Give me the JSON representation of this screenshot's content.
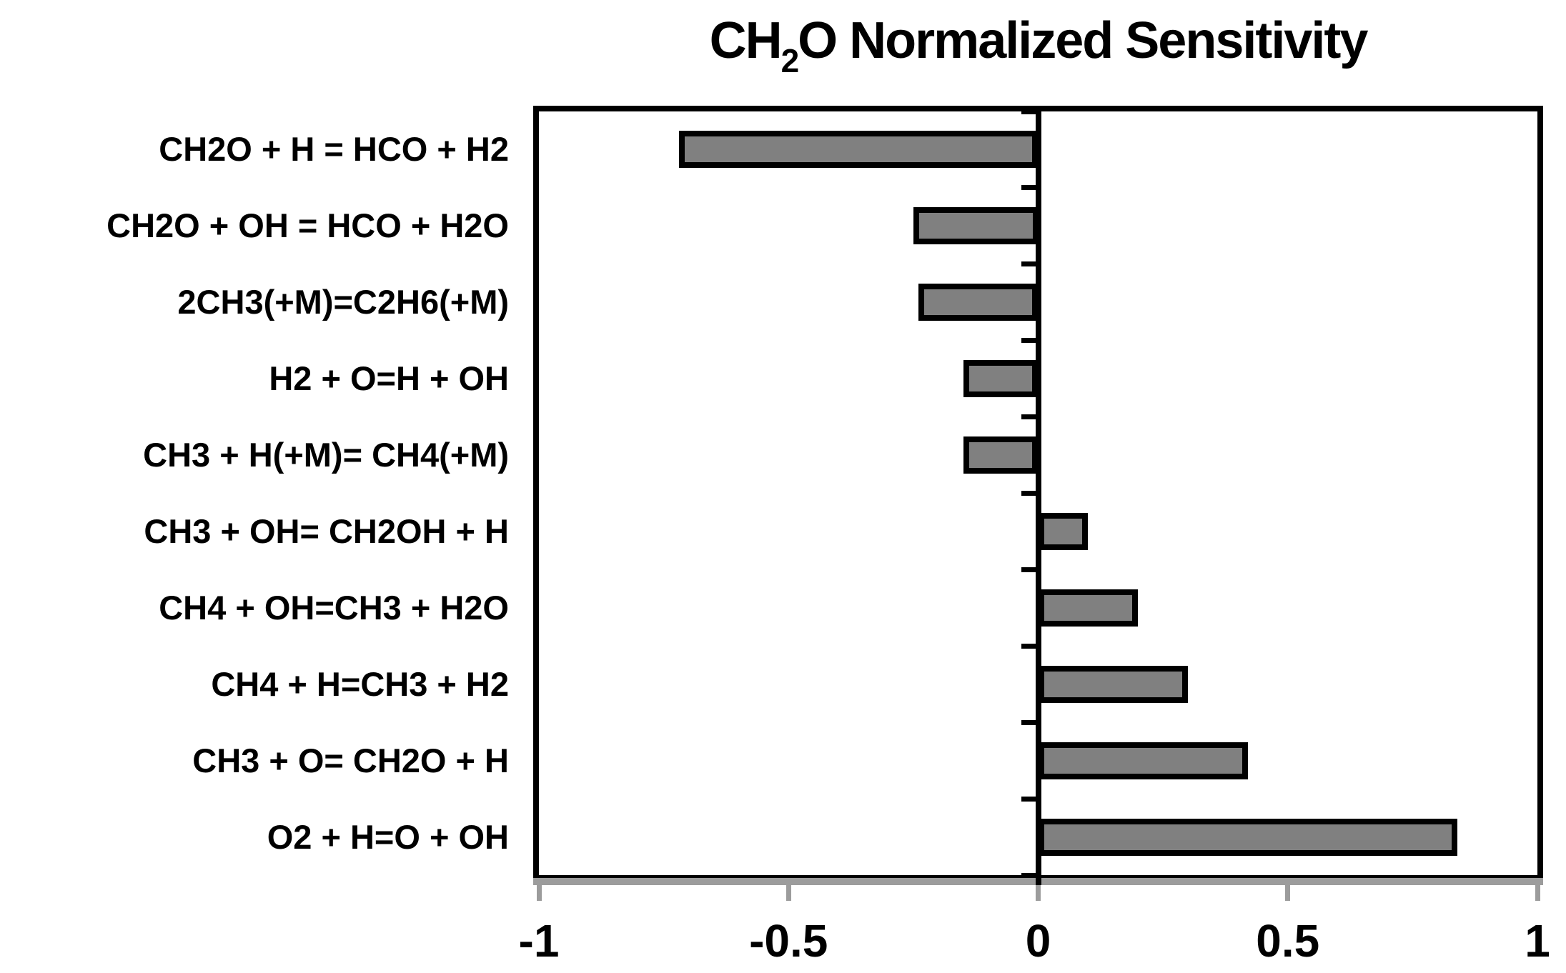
{
  "chart_data": {
    "type": "bar",
    "orientation": "horizontal",
    "title": "CH2O Normalized Sensitivity",
    "title_parts": {
      "prefix": "CH",
      "subscript": "2",
      "suffix": "O Normalized Sensitivity"
    },
    "categories": [
      "CH2O + H = HCO + H2",
      "CH2O + OH = HCO + H2O",
      "2CH3(+M)=C2H6(+M)",
      "H2 + O=H + OH",
      "CH3 + H(+M)= CH4(+M)",
      "CH3 + OH= CH2OH + H",
      "CH4 + OH=CH3 + H2O",
      "CH4 + H=CH3 + H2",
      "CH3 + O= CH2O + H",
      "O2 + H=O + OH"
    ],
    "values": [
      -0.72,
      -0.25,
      -0.24,
      -0.15,
      -0.15,
      0.1,
      0.2,
      0.3,
      0.42,
      0.84
    ],
    "xlabel": "",
    "ylabel": "",
    "xlim": [
      -1,
      1
    ],
    "x_ticks": [
      -1,
      -0.5,
      0,
      0.5,
      1
    ],
    "x_tick_labels": [
      "-1",
      "-0.5",
      "0",
      "0.5",
      "1"
    ],
    "grid": false,
    "legend": false,
    "colors": {
      "bar_fill": "#808080",
      "bar_border": "#000000",
      "axis_black": "#000000",
      "axis_gray": "#9c9c9c",
      "background": "#ffffff",
      "text": "#000000"
    }
  }
}
